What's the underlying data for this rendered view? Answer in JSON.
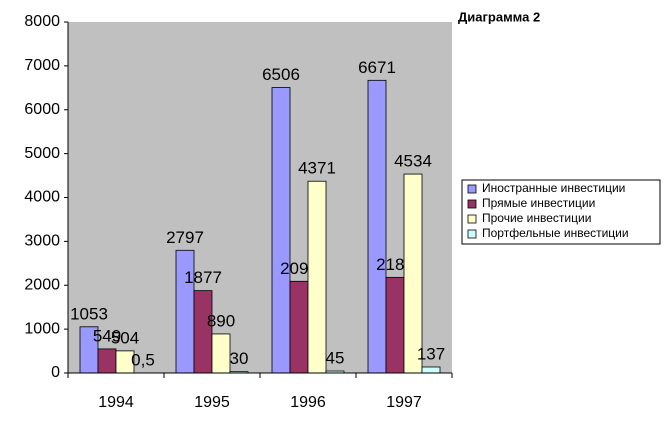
{
  "chart_data": {
    "type": "bar",
    "title": "Диаграмма 2",
    "categories": [
      "1994",
      "1995",
      "1996",
      "1997"
    ],
    "series": [
      {
        "name": "Иностранные инвестиции",
        "color": "#9999ff",
        "values": [
          1053,
          2797,
          6506,
          6671
        ]
      },
      {
        "name": "Прямые инвестиции",
        "color": "#993366",
        "values": [
          549,
          1877,
          2090,
          2180
        ]
      },
      {
        "name": "Прочие инвестиции",
        "color": "#ffffcc",
        "values": [
          504,
          890,
          4371,
          4534
        ]
      },
      {
        "name": "Портфельные инвестиции",
        "color": "#ccffff",
        "values": [
          0.5,
          30,
          45,
          137
        ],
        "value_labels": [
          "0,5",
          "30",
          "45",
          "137"
        ]
      }
    ],
    "ylim": [
      0,
      8000
    ],
    "yticks": [
      0,
      1000,
      2000,
      3000,
      4000,
      5000,
      6000,
      7000,
      8000
    ],
    "grid": false,
    "plot_background": "#c0c0c0",
    "legend": "right"
  }
}
